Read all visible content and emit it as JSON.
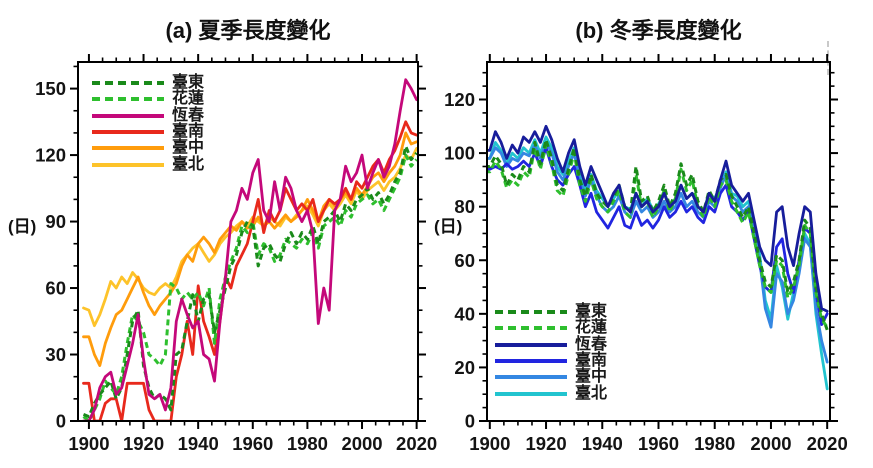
{
  "figure": {
    "background": "#ffffff",
    "frame_color": "#000000",
    "tick_label_color": "#141414"
  },
  "chart_data": [
    {
      "type": "line",
      "panel": "a",
      "title": "(a) 夏季長度變化",
      "unit_label": "(日)",
      "xlabel": "",
      "ylabel": "日",
      "grid": false,
      "legend_position": "top-left",
      "xlim": [
        1896,
        2020.5
      ],
      "ylim": [
        0,
        162
      ],
      "xticks": {
        "major": [
          1900,
          1920,
          1940,
          1960,
          1980,
          2000,
          2020
        ],
        "minor_step": 5
      },
      "yticks": {
        "major": [
          0,
          30,
          60,
          90,
          120,
          150
        ],
        "minor_step": 10,
        "minor_max": 160
      },
      "x": [
        1898,
        1900,
        1902,
        1904,
        1906,
        1908,
        1910,
        1912,
        1914,
        1916,
        1918,
        1920,
        1922,
        1924,
        1926,
        1928,
        1930,
        1932,
        1934,
        1936,
        1938,
        1940,
        1942,
        1944,
        1946,
        1948,
        1950,
        1952,
        1954,
        1956,
        1958,
        1960,
        1962,
        1964,
        1966,
        1968,
        1970,
        1972,
        1974,
        1976,
        1978,
        1980,
        1982,
        1984,
        1986,
        1988,
        1990,
        1992,
        1994,
        1996,
        1998,
        2000,
        2002,
        2004,
        2006,
        2008,
        2010,
        2012,
        2014,
        2016,
        2018,
        2020
      ],
      "series": [
        {
          "id": "taitung",
          "label": "臺東",
          "color": "#1a8a1a",
          "dash": true,
          "values": [
            3,
            2,
            8,
            12,
            15,
            18,
            10,
            15,
            30,
            45,
            50,
            25,
            15,
            10,
            12,
            10,
            5,
            30,
            32,
            45,
            57,
            45,
            55,
            57,
            40,
            50,
            60,
            70,
            75,
            85,
            90,
            88,
            70,
            78,
            80,
            75,
            72,
            80,
            85,
            80,
            85,
            82,
            88,
            80,
            90,
            92,
            95,
            90,
            98,
            95,
            100,
            102,
            105,
            100,
            103,
            98,
            102,
            108,
            112,
            124,
            118,
            121
          ]
        },
        {
          "id": "hualien",
          "label": "花蓮",
          "color": "#2ebf2e",
          "dash": true,
          "values": [
            2,
            0,
            5,
            10,
            18,
            15,
            12,
            20,
            35,
            48,
            45,
            40,
            30,
            28,
            25,
            30,
            62,
            60,
            55,
            58,
            55,
            58,
            52,
            60,
            35,
            55,
            65,
            72,
            78,
            88,
            85,
            90,
            75,
            80,
            78,
            72,
            75,
            82,
            80,
            78,
            82,
            80,
            85,
            78,
            88,
            90,
            92,
            88,
            95,
            92,
            98,
            100,
            102,
            98,
            100,
            95,
            100,
            105,
            110,
            120,
            115,
            118
          ]
        },
        {
          "id": "hengchun",
          "label": "恆春",
          "color": "#c4087a",
          "dash": false,
          "values": [
            0,
            0,
            5,
            15,
            20,
            22,
            12,
            15,
            25,
            35,
            48,
            28,
            12,
            10,
            12,
            5,
            15,
            45,
            55,
            48,
            42,
            45,
            30,
            28,
            18,
            45,
            65,
            90,
            95,
            105,
            100,
            112,
            118,
            95,
            90,
            108,
            95,
            110,
            105,
            95,
            90,
            95,
            85,
            44,
            60,
            50,
            95,
            100,
            115,
            108,
            112,
            120,
            105,
            112,
            118,
            110,
            115,
            125,
            140,
            154,
            150,
            145
          ]
        },
        {
          "id": "tainan",
          "label": "臺南",
          "color": "#e8291c",
          "dash": false,
          "values": [
            17,
            17,
            0,
            0,
            8,
            10,
            10,
            0,
            17,
            17,
            17,
            17,
            5,
            0,
            0,
            0,
            0,
            20,
            30,
            45,
            30,
            61,
            45,
            38,
            30,
            45,
            65,
            60,
            70,
            75,
            80,
            90,
            100,
            85,
            95,
            90,
            95,
            105,
            100,
            95,
            98,
            95,
            100,
            90,
            95,
            100,
            98,
            100,
            105,
            100,
            108,
            105,
            110,
            115,
            118,
            112,
            118,
            122,
            128,
            135,
            130,
            129
          ]
        },
        {
          "id": "taichung",
          "label": "臺中",
          "color": "#ff9c0c",
          "dash": false,
          "values": [
            38,
            38,
            30,
            25,
            35,
            42,
            48,
            50,
            55,
            60,
            65,
            58,
            52,
            48,
            52,
            55,
            58,
            62,
            70,
            75,
            72,
            80,
            83,
            80,
            76,
            82,
            85,
            88,
            86,
            90,
            87,
            88,
            92,
            88,
            90,
            87,
            90,
            93,
            90,
            92,
            95,
            100,
            95,
            90,
            97,
            100,
            97,
            100,
            103,
            100,
            105,
            102,
            106,
            110,
            112,
            108,
            112,
            115,
            120,
            130,
            125,
            126
          ]
        },
        {
          "id": "taipei",
          "label": "臺北",
          "color": "#fdc32a",
          "dash": false,
          "values": [
            51,
            50,
            43,
            48,
            55,
            63,
            60,
            65,
            62,
            67,
            64,
            60,
            58,
            57,
            60,
            62,
            60,
            65,
            72,
            75,
            78,
            80,
            76,
            72,
            75,
            80,
            83,
            85,
            88,
            90,
            88,
            92,
            90,
            88,
            92,
            90,
            88,
            92,
            90,
            93,
            95,
            97,
            93,
            88,
            95,
            98,
            95,
            98,
            102,
            98,
            104,
            100,
            104,
            106,
            108,
            104,
            108,
            110,
            114,
            120,
            118,
            123
          ]
        }
      ]
    },
    {
      "type": "line",
      "panel": "b",
      "title": "(b) 冬季長度變化",
      "unit_label": "(日)",
      "xlabel": "",
      "ylabel": "日",
      "grid": false,
      "legend_position": "bottom-left",
      "xlim": [
        1899,
        2021
      ],
      "ylim": [
        0,
        134
      ],
      "xticks": {
        "major": [
          1900,
          1920,
          1940,
          1960,
          1980,
          2000,
          2020
        ],
        "minor_step": 5
      },
      "yticks": {
        "major": [
          0,
          20,
          40,
          60,
          80,
          100,
          120
        ],
        "minor_step": 5,
        "minor_max": 130
      },
      "x": [
        1898,
        1900,
        1902,
        1904,
        1906,
        1908,
        1910,
        1912,
        1914,
        1916,
        1918,
        1920,
        1922,
        1924,
        1926,
        1928,
        1930,
        1932,
        1934,
        1936,
        1938,
        1940,
        1942,
        1944,
        1946,
        1948,
        1950,
        1952,
        1954,
        1956,
        1958,
        1960,
        1962,
        1964,
        1966,
        1968,
        1970,
        1972,
        1974,
        1976,
        1978,
        1980,
        1982,
        1984,
        1986,
        1988,
        1990,
        1992,
        1994,
        1996,
        1998,
        2000,
        2002,
        2004,
        2006,
        2008,
        2010,
        2012,
        2014,
        2016,
        2018,
        2020
      ],
      "series": [
        {
          "id": "taitung",
          "label": "臺東",
          "color": "#1a8a1a",
          "dash": true,
          "values": [
            95,
            95,
            99,
            96,
            88,
            92,
            90,
            95,
            93,
            104,
            96,
            105,
            98,
            88,
            86,
            94,
            102,
            90,
            84,
            92,
            85,
            82,
            80,
            84,
            88,
            80,
            78,
            95,
            82,
            84,
            78,
            82,
            88,
            80,
            85,
            96,
            88,
            92,
            82,
            78,
            86,
            82,
            90,
            92,
            84,
            80,
            76,
            80,
            70,
            60,
            52,
            50,
            62,
            60,
            48,
            52,
            60,
            75,
            72,
            50,
            40,
            34
          ]
        },
        {
          "id": "hualien",
          "label": "花蓮",
          "color": "#2ebf2e",
          "dash": true,
          "values": [
            93,
            93,
            97,
            94,
            87,
            90,
            88,
            93,
            91,
            102,
            94,
            103,
            96,
            86,
            84,
            92,
            100,
            88,
            82,
            90,
            83,
            80,
            78,
            82,
            86,
            78,
            76,
            92,
            80,
            82,
            76,
            80,
            86,
            78,
            83,
            94,
            86,
            90,
            80,
            76,
            84,
            80,
            88,
            90,
            82,
            78,
            74,
            78,
            68,
            58,
            50,
            48,
            60,
            58,
            46,
            50,
            58,
            73,
            70,
            48,
            38,
            35
          ]
        },
        {
          "id": "hengchun",
          "label": "恆春",
          "color": "#171d9b",
          "dash": false,
          "values": [
            101,
            101,
            108,
            104,
            98,
            103,
            100,
            106,
            104,
            108,
            104,
            110,
            105,
            98,
            93,
            100,
            105,
            95,
            88,
            95,
            90,
            85,
            80,
            85,
            88,
            80,
            78,
            85,
            80,
            82,
            78,
            80,
            85,
            80,
            82,
            88,
            83,
            85,
            80,
            78,
            85,
            82,
            90,
            97,
            88,
            85,
            82,
            85,
            75,
            65,
            60,
            58,
            78,
            80,
            65,
            58,
            70,
            80,
            78,
            55,
            42,
            41
          ]
        },
        {
          "id": "tainan",
          "label": "臺南",
          "color": "#2125e0",
          "dash": false,
          "values": [
            94,
            94,
            95,
            94,
            96,
            94,
            95,
            97,
            95,
            100,
            95,
            102,
            95,
            90,
            88,
            92,
            95,
            88,
            80,
            85,
            78,
            75,
            72,
            76,
            80,
            73,
            72,
            78,
            73,
            75,
            72,
            75,
            80,
            76,
            78,
            82,
            78,
            80,
            76,
            74,
            80,
            78,
            85,
            88,
            80,
            78,
            75,
            78,
            68,
            58,
            50,
            48,
            65,
            68,
            55,
            48,
            60,
            72,
            70,
            48,
            36,
            40
          ]
        },
        {
          "id": "taichung",
          "label": "臺中",
          "color": "#3487e2",
          "dash": false,
          "values": [
            98,
            98,
            102,
            100,
            95,
            98,
            97,
            100,
            99,
            103,
            98,
            104,
            100,
            93,
            90,
            95,
            100,
            90,
            84,
            90,
            84,
            80,
            78,
            80,
            84,
            78,
            76,
            82,
            78,
            80,
            76,
            78,
            82,
            78,
            80,
            85,
            80,
            82,
            78,
            76,
            82,
            80,
            87,
            92,
            84,
            82,
            78,
            80,
            70,
            60,
            42,
            35,
            55,
            52,
            40,
            45,
            55,
            68,
            65,
            42,
            30,
            22
          ]
        },
        {
          "id": "taipei",
          "label": "臺北",
          "color": "#22c4cf",
          "dash": false,
          "values": [
            98,
            98,
            104,
            101,
            96,
            100,
            98,
            102,
            100,
            105,
            100,
            106,
            102,
            95,
            92,
            97,
            102,
            92,
            86,
            92,
            86,
            83,
            80,
            83,
            86,
            80,
            79,
            85,
            80,
            83,
            79,
            81,
            85,
            80,
            83,
            88,
            83,
            85,
            80,
            78,
            85,
            83,
            88,
            93,
            85,
            84,
            80,
            82,
            72,
            62,
            45,
            38,
            58,
            50,
            38,
            48,
            58,
            70,
            66,
            40,
            25,
            12
          ]
        }
      ]
    }
  ]
}
